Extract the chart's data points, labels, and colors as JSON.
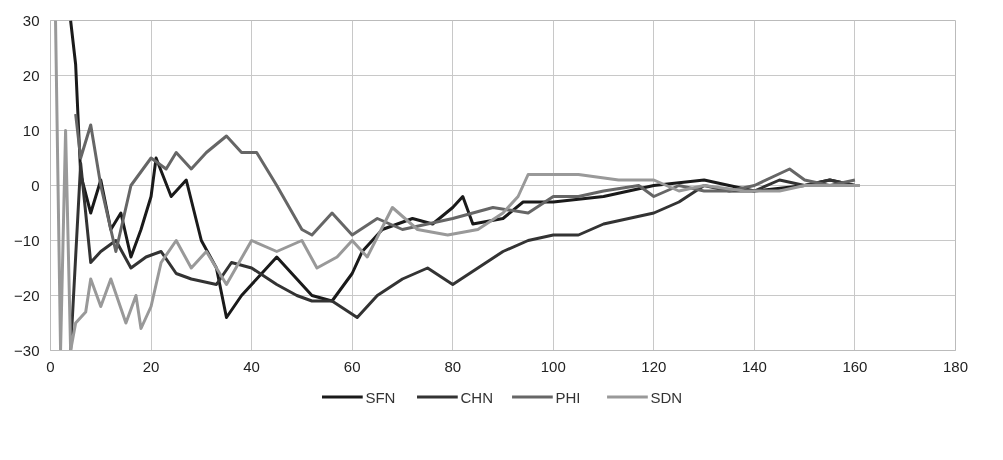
{
  "chart_data": {
    "type": "line",
    "xlim": [
      0,
      180
    ],
    "xticks": [
      0,
      20,
      40,
      60,
      80,
      100,
      120,
      140,
      160,
      180
    ],
    "ylim": [
      -30,
      30
    ],
    "yticks": [
      -30,
      -20,
      -10,
      0,
      10,
      20,
      30
    ],
    "grid": true,
    "legend": "bottom",
    "line_style": "solid",
    "marker": "none",
    "series": [
      {
        "name": "SFN",
        "color": "#1a1a1a",
        "x": [
          4,
          5,
          6,
          8,
          10,
          12,
          14,
          16,
          18,
          20,
          21,
          24,
          27,
          30,
          33,
          35,
          38,
          41,
          45,
          48,
          52,
          56,
          60,
          62,
          66,
          72,
          76,
          80,
          82,
          84,
          90,
          94,
          100,
          110,
          120,
          130,
          140,
          150,
          155,
          160
        ],
        "values": [
          30,
          22,
          2,
          -5,
          1,
          -8,
          -5,
          -13,
          -8,
          -2,
          5,
          -2,
          1,
          -10,
          -15,
          -24,
          -20,
          -17,
          -13,
          -16,
          -20,
          -21,
          -16,
          -12,
          -8,
          -6,
          -7,
          -4,
          -2,
          -7,
          -6,
          -3,
          -3,
          -2,
          0,
          1,
          -1,
          0,
          1,
          0
        ]
      },
      {
        "name": "CHN",
        "color": "#333333",
        "x": [
          4,
          6,
          8,
          10,
          13,
          16,
          19,
          22,
          25,
          28,
          33,
          36,
          40,
          45,
          49,
          52,
          56,
          61,
          65,
          70,
          75,
          80,
          85,
          90,
          95,
          100,
          105,
          110,
          115,
          120,
          125,
          130,
          135,
          140,
          145,
          150,
          155,
          160
        ],
        "values": [
          -30,
          4,
          -14,
          -12,
          -10,
          -15,
          -13,
          -12,
          -16,
          -17,
          -18,
          -14,
          -15,
          -18,
          -20,
          -21,
          -21,
          -24,
          -20,
          -17,
          -15,
          -18,
          -15,
          -12,
          -10,
          -9,
          -9,
          -7,
          -6,
          -5,
          -3,
          0,
          -1,
          -1,
          1,
          0,
          1,
          0
        ]
      },
      {
        "name": "PHI",
        "color": "#666666",
        "x": [
          5,
          6,
          8,
          10,
          13,
          16,
          20,
          23,
          25,
          28,
          31,
          35,
          38,
          41,
          45,
          50,
          52,
          56,
          60,
          65,
          70,
          75,
          80,
          88,
          95,
          100,
          105,
          110,
          117,
          120,
          125,
          130,
          135,
          140,
          147,
          150,
          155,
          160
        ],
        "values": [
          13,
          5,
          11,
          0,
          -12,
          0,
          5,
          3,
          6,
          3,
          6,
          9,
          6,
          6,
          0,
          -8,
          -9,
          -5,
          -9,
          -6,
          -8,
          -7,
          -6,
          -4,
          -5,
          -2,
          -2,
          -1,
          0,
          -2,
          0,
          -1,
          -1,
          0,
          3,
          1,
          0,
          1
        ]
      },
      {
        "name": "SDN",
        "color": "#999999",
        "x": [
          1,
          2,
          3,
          4,
          5,
          7,
          8,
          10,
          12,
          15,
          17,
          18,
          20,
          22,
          25,
          28,
          31,
          35,
          40,
          45,
          50,
          53,
          57,
          60,
          63,
          68,
          73,
          79,
          85,
          90,
          93,
          95,
          100,
          105,
          113,
          120,
          125,
          130,
          138,
          145,
          150,
          155,
          161
        ],
        "values": [
          30,
          -30,
          10,
          -30,
          -25,
          -23,
          -17,
          -22,
          -17,
          -25,
          -20,
          -26,
          -22,
          -14,
          -10,
          -15,
          -12,
          -18,
          -10,
          -12,
          -10,
          -15,
          -13,
          -10,
          -13,
          -4,
          -8,
          -9,
          -8,
          -5,
          -2,
          2,
          2,
          2,
          1,
          1,
          -1,
          0,
          -1,
          -1,
          0,
          0,
          0
        ]
      }
    ]
  }
}
